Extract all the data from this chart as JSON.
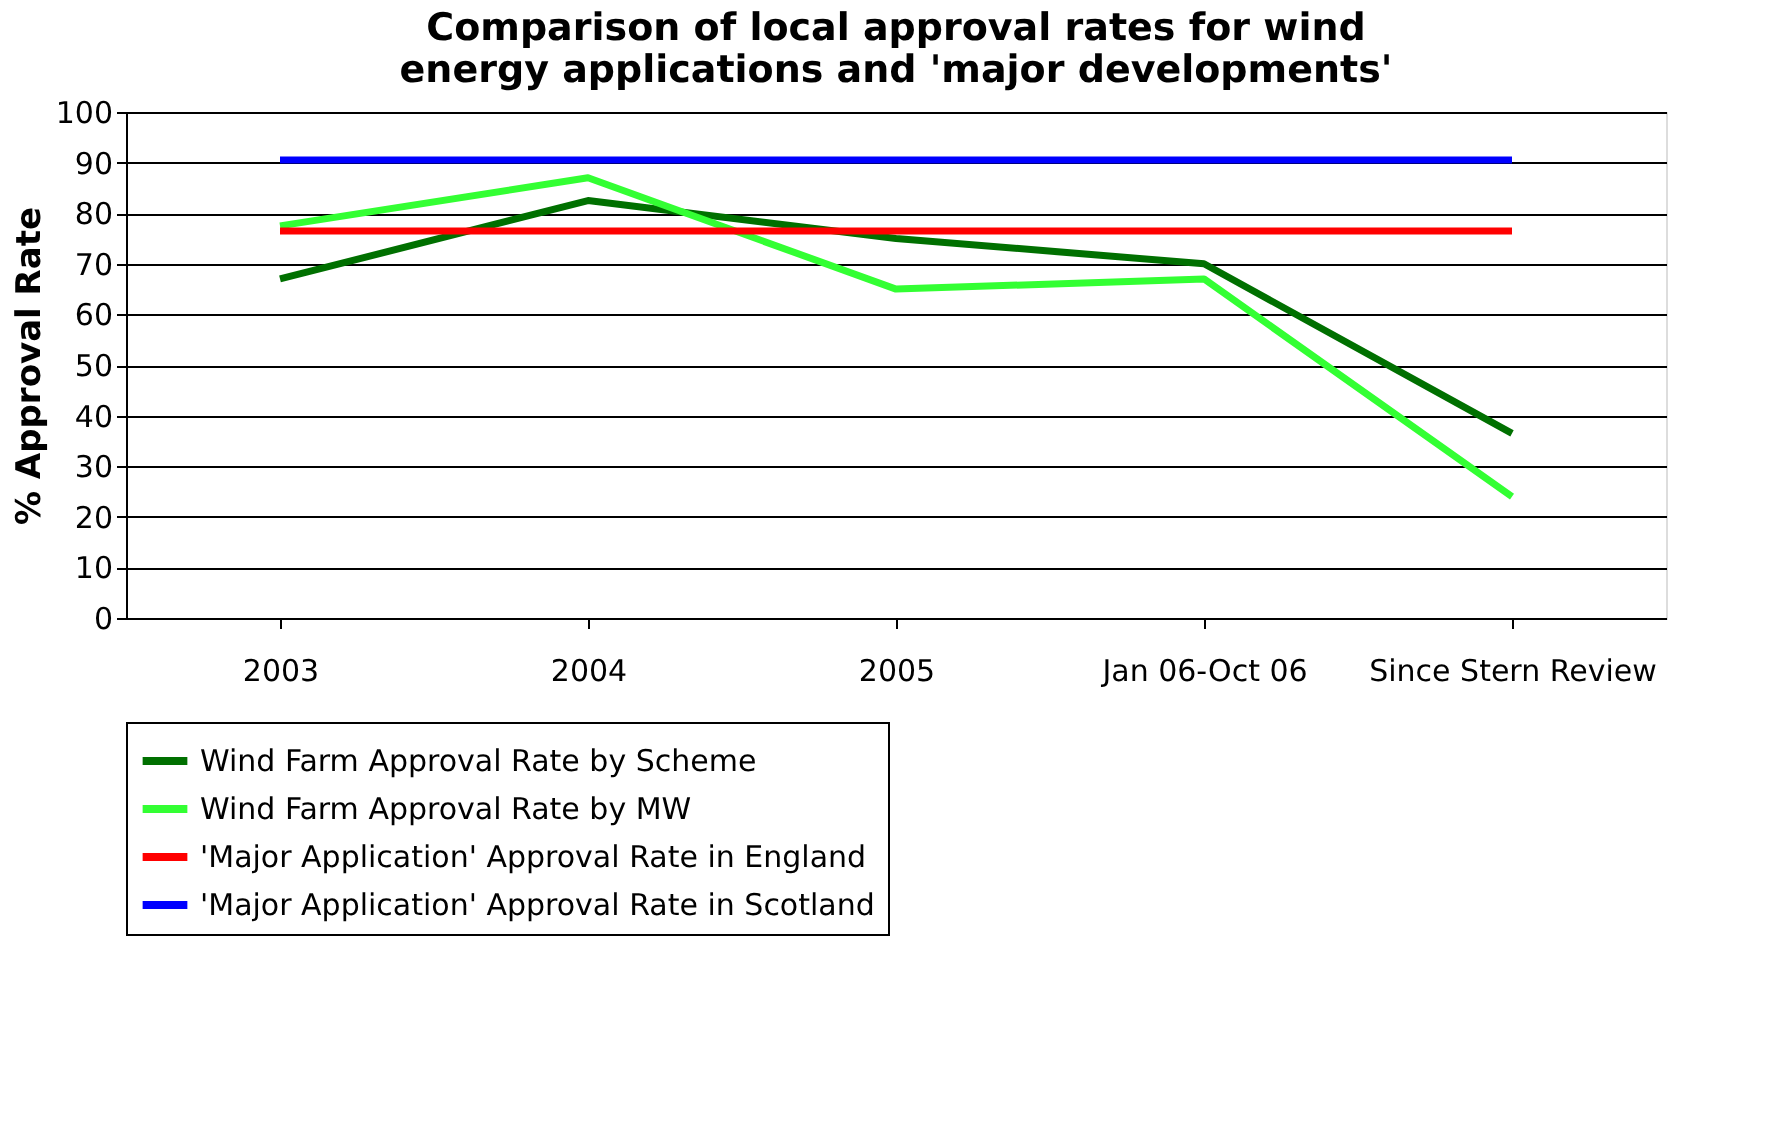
{
  "chart_data": {
    "type": "line",
    "title": "Comparison of local approval rates for wind energy applications and 'major developments'",
    "ylabel": "% Approval Rate",
    "categories": [
      "2003",
      "2004",
      "2005",
      "Jan 06-Oct 06",
      "Since Stern Review"
    ],
    "series": [
      {
        "name": "Wind Farm Approval Rate by Scheme",
        "color": "#007000",
        "values": [
          67,
          82.5,
          75,
          70,
          36.5
        ]
      },
      {
        "name": "Wind Farm Approval Rate by MW",
        "color": "#33ff33",
        "values": [
          77.5,
          87,
          65,
          67,
          24
        ]
      },
      {
        "name": "'Major Application' Approval Rate in England",
        "color": "#ff0000",
        "values": [
          76.5,
          76.5,
          76.5,
          76.5,
          76.5
        ]
      },
      {
        "name": "'Major Application' Approval Rate in Scotland",
        "color": "#0000ff",
        "values": [
          90.5,
          90.5,
          90.5,
          90.5,
          90.5
        ]
      }
    ],
    "ylim": [
      0,
      100
    ],
    "yticks": [
      0,
      10,
      20,
      30,
      40,
      50,
      60,
      70,
      80,
      90,
      100
    ],
    "grid": "y",
    "legend": "bottom",
    "marker": "none",
    "line_style": "solid"
  }
}
